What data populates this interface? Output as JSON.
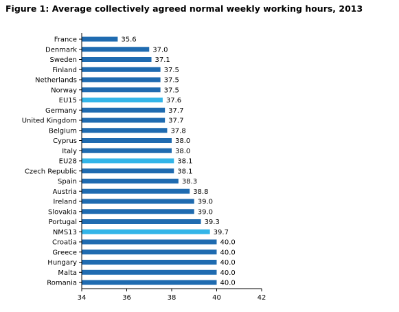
{
  "chart_data": {
    "type": "bar",
    "orientation": "horizontal",
    "title": "Figure 1: Average collectively agreed normal weekly working hours, 2013",
    "xlabel": "",
    "ylabel": "",
    "xlim": [
      34,
      42
    ],
    "xticks": [
      "34",
      "36",
      "38",
      "40",
      "42"
    ],
    "grid": false,
    "legend": "none",
    "colors": {
      "bar": "#1f6bb0",
      "aggregate": "#33b5e8"
    },
    "categories": [
      "France",
      "Denmark",
      "Sweden",
      "Finland",
      "Netherlands",
      "Norway",
      "EU15",
      "Germany",
      "United Kingdom",
      "Belgium",
      "Cyprus",
      "Italy",
      "EU28",
      "Czech Republic",
      "Spain",
      "Austria",
      "Ireland",
      "Slovakia",
      "Portugal",
      "NMS13",
      "Croatia",
      "Greece",
      "Hungary",
      "Malta",
      "Romania"
    ],
    "values": [
      35.6,
      37.0,
      37.1,
      37.5,
      37.5,
      37.5,
      37.6,
      37.7,
      37.7,
      37.8,
      38.0,
      38.0,
      38.1,
      38.1,
      38.3,
      38.8,
      39.0,
      39.0,
      39.3,
      39.7,
      40.0,
      40.0,
      40.0,
      40.0,
      40.0
    ],
    "value_labels": [
      "35.6",
      "37.0",
      "37.1",
      "37.5",
      "37.5",
      "37.5",
      "37.6",
      "37.7",
      "37.7",
      "37.8",
      "38.0",
      "38.0",
      "38.1",
      "38.1",
      "38.3",
      "38.8",
      "39.0",
      "39.0",
      "39.3",
      "39.7",
      "40.0",
      "40.0",
      "40.0",
      "40.0",
      "40.0"
    ],
    "highlighted": [
      "EU15",
      "EU28",
      "NMS13"
    ]
  }
}
